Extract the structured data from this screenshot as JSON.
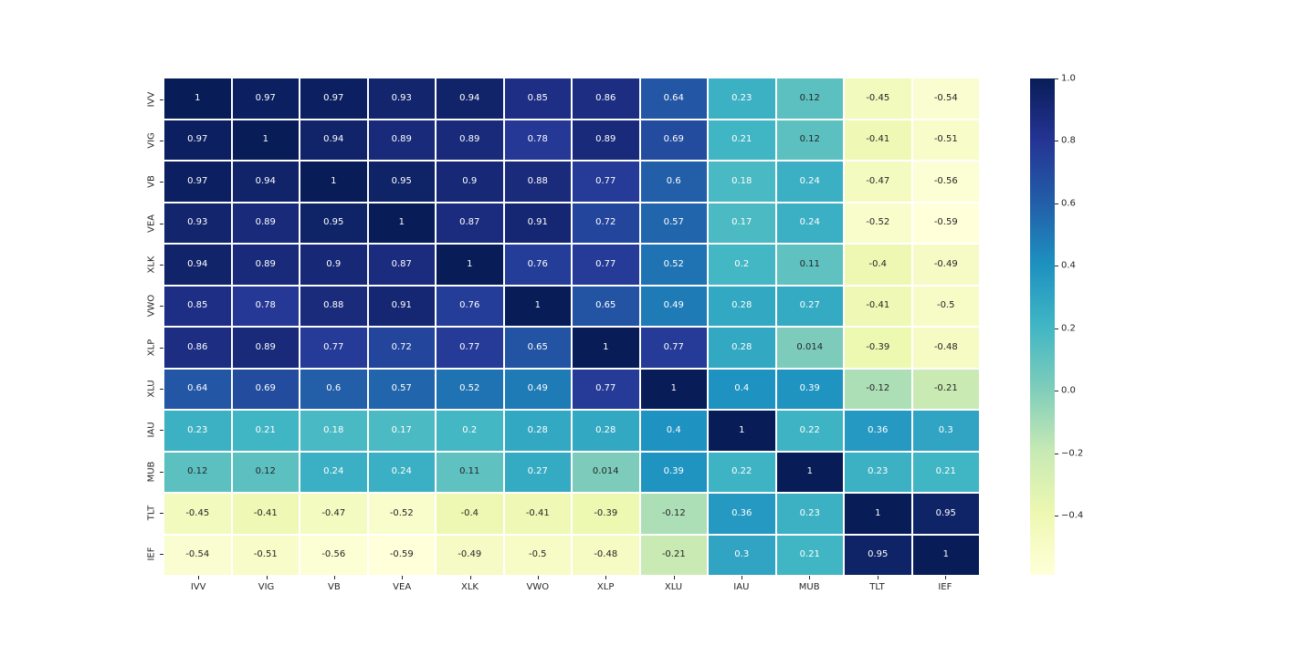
{
  "chart_data": {
    "type": "heatmap",
    "title": "",
    "xlabel": "",
    "ylabel": "",
    "categories": [
      "IVV",
      "VIG",
      "VB",
      "VEA",
      "XLK",
      "VWO",
      "XLP",
      "XLU",
      "IAU",
      "MUB",
      "TLT",
      "IEF"
    ],
    "matrix": [
      [
        1,
        0.97,
        0.97,
        0.93,
        0.94,
        0.85,
        0.86,
        0.64,
        0.23,
        0.12,
        -0.45,
        -0.54
      ],
      [
        0.97,
        1,
        0.94,
        0.89,
        0.89,
        0.78,
        0.89,
        0.69,
        0.21,
        0.12,
        -0.41,
        -0.51
      ],
      [
        0.97,
        0.94,
        1,
        0.95,
        0.9,
        0.88,
        0.77,
        0.6,
        0.18,
        0.24,
        -0.47,
        -0.56
      ],
      [
        0.93,
        0.89,
        0.95,
        1,
        0.87,
        0.91,
        0.72,
        0.57,
        0.17,
        0.24,
        -0.52,
        -0.59
      ],
      [
        0.94,
        0.89,
        0.9,
        0.87,
        1,
        0.76,
        0.77,
        0.52,
        0.2,
        0.11,
        -0.4,
        -0.49
      ],
      [
        0.85,
        0.78,
        0.88,
        0.91,
        0.76,
        1,
        0.65,
        0.49,
        0.28,
        0.27,
        -0.41,
        -0.5
      ],
      [
        0.86,
        0.89,
        0.77,
        0.72,
        0.77,
        0.65,
        1,
        0.77,
        0.28,
        0.014,
        -0.39,
        -0.48
      ],
      [
        0.64,
        0.69,
        0.6,
        0.57,
        0.52,
        0.49,
        0.77,
        1,
        0.4,
        0.39,
        -0.12,
        -0.21
      ],
      [
        0.23,
        0.21,
        0.18,
        0.17,
        0.2,
        0.28,
        0.28,
        0.4,
        1,
        0.22,
        0.36,
        0.3
      ],
      [
        0.12,
        0.12,
        0.24,
        0.24,
        0.11,
        0.27,
        0.014,
        0.39,
        0.22,
        1,
        0.23,
        0.21
      ],
      [
        -0.45,
        -0.41,
        -0.47,
        -0.52,
        -0.4,
        -0.41,
        -0.39,
        -0.12,
        0.36,
        0.23,
        1,
        0.95
      ],
      [
        -0.54,
        -0.51,
        -0.56,
        -0.59,
        -0.49,
        -0.5,
        -0.48,
        -0.21,
        0.3,
        0.21,
        0.95,
        1
      ]
    ],
    "vmin": -0.59,
    "vmax": 1.0,
    "colormap_name": "YlGnBu",
    "colormap_stops": [
      [
        0.0,
        "#ffffd9"
      ],
      [
        0.125,
        "#edf8b1"
      ],
      [
        0.25,
        "#c7e9b4"
      ],
      [
        0.375,
        "#7fcdbb"
      ],
      [
        0.5,
        "#41b6c4"
      ],
      [
        0.625,
        "#1d91c0"
      ],
      [
        0.75,
        "#225ea8"
      ],
      [
        0.875,
        "#253494"
      ],
      [
        1.0,
        "#081d58"
      ]
    ],
    "legend_position": "right",
    "grid": false,
    "colorbar": {
      "tick_values": [
        1.0,
        0.8,
        0.6,
        0.4,
        0.2,
        0.0,
        -0.2,
        -0.4
      ],
      "tick_labels": [
        "1.0",
        "0.8",
        "0.6",
        "0.4",
        "0.2",
        "0.0",
        "−0.2",
        "−0.4"
      ]
    },
    "annotation_text_dark": "#262626",
    "annotation_text_light": "#ffffff"
  }
}
